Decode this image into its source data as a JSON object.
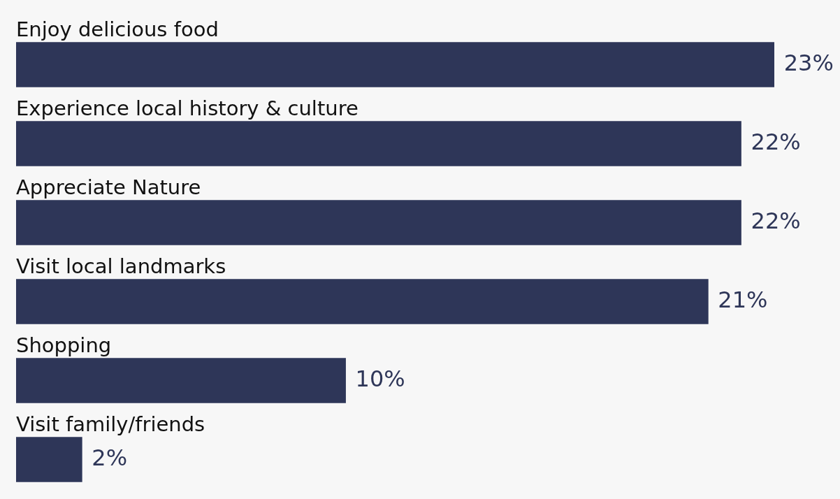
{
  "chart_data": {
    "type": "bar",
    "orientation": "horizontal",
    "categories": [
      "Enjoy delicious food",
      "Experience local history & culture",
      "Appreciate Nature",
      "Visit local landmarks",
      "Shopping",
      "Visit family/friends"
    ],
    "values": [
      23,
      22,
      22,
      21,
      10,
      2
    ],
    "value_labels": [
      "23%",
      "22%",
      "22%",
      "21%",
      "10%",
      "2%"
    ],
    "color": "#2e3658",
    "tick_labels": false,
    "legend": false
  }
}
